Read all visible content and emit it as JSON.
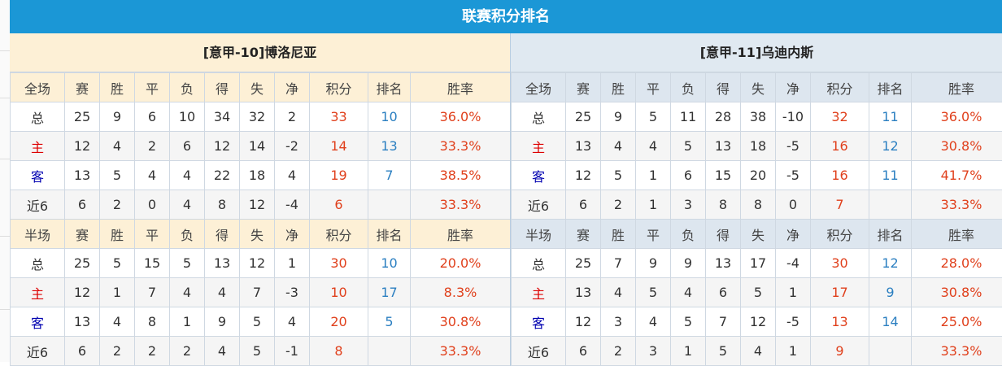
{
  "title": "联赛积分排名",
  "headers": {
    "full": "全场",
    "half": "半场",
    "cols": [
      "赛",
      "胜",
      "平",
      "负",
      "得",
      "失",
      "净",
      "积分",
      "排名",
      "胜率"
    ]
  },
  "colors": {
    "title_bg": "#1b97d6",
    "points": "#e0401c",
    "rank": "#2b7fc1",
    "home": "#dd0000",
    "away": "#0000b0"
  },
  "teams": [
    {
      "name": "[意甲-10]博洛尼亚",
      "full": [
        [
          "总",
          "25",
          "9",
          "6",
          "10",
          "34",
          "32",
          "2",
          "33",
          "10",
          "36.0%"
        ],
        [
          "主",
          "12",
          "4",
          "2",
          "6",
          "12",
          "14",
          "-2",
          "14",
          "13",
          "33.3%"
        ],
        [
          "客",
          "13",
          "5",
          "4",
          "4",
          "22",
          "18",
          "4",
          "19",
          "7",
          "38.5%"
        ],
        [
          "近6",
          "6",
          "2",
          "0",
          "4",
          "8",
          "12",
          "-4",
          "6",
          "",
          "33.3%"
        ]
      ],
      "half": [
        [
          "总",
          "25",
          "5",
          "15",
          "5",
          "13",
          "12",
          "1",
          "30",
          "10",
          "20.0%"
        ],
        [
          "主",
          "12",
          "1",
          "7",
          "4",
          "4",
          "7",
          "-3",
          "10",
          "17",
          "8.3%"
        ],
        [
          "客",
          "13",
          "4",
          "8",
          "1",
          "9",
          "5",
          "4",
          "20",
          "5",
          "30.8%"
        ],
        [
          "近6",
          "6",
          "2",
          "2",
          "2",
          "4",
          "5",
          "-1",
          "8",
          "",
          "33.3%"
        ]
      ]
    },
    {
      "name": "[意甲-11]乌迪内斯",
      "full": [
        [
          "总",
          "25",
          "9",
          "5",
          "11",
          "28",
          "38",
          "-10",
          "32",
          "11",
          "36.0%"
        ],
        [
          "主",
          "13",
          "4",
          "4",
          "5",
          "13",
          "18",
          "-5",
          "16",
          "12",
          "30.8%"
        ],
        [
          "客",
          "12",
          "5",
          "1",
          "6",
          "15",
          "20",
          "-5",
          "16",
          "11",
          "41.7%"
        ],
        [
          "近6",
          "6",
          "2",
          "1",
          "3",
          "8",
          "8",
          "0",
          "7",
          "",
          "33.3%"
        ]
      ],
      "half": [
        [
          "总",
          "25",
          "7",
          "9",
          "9",
          "13",
          "17",
          "-4",
          "30",
          "12",
          "28.0%"
        ],
        [
          "主",
          "13",
          "4",
          "5",
          "4",
          "6",
          "5",
          "1",
          "17",
          "9",
          "30.8%"
        ],
        [
          "客",
          "12",
          "3",
          "4",
          "5",
          "7",
          "12",
          "-5",
          "13",
          "14",
          "25.0%"
        ],
        [
          "近6",
          "6",
          "2",
          "3",
          "1",
          "5",
          "4",
          "1",
          "9",
          "",
          "33.3%"
        ]
      ]
    }
  ]
}
